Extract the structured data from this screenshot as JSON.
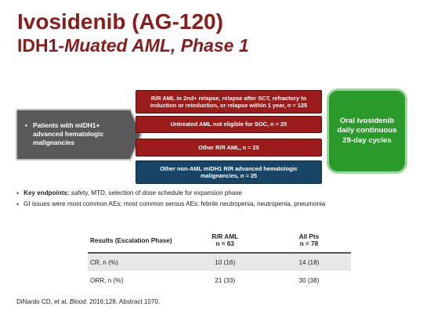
{
  "title": {
    "line1": "Ivosidenib (AG-120)",
    "line2_prefix": "IDH1-",
    "line2_italic": "Muated AML, Phase 1"
  },
  "flow": {
    "population": "Patients with mIDH1+ advanced hematologic malignancies",
    "cohorts": [
      "R/R AML in 2nd+ relapse, relapse after SCT, refractory to induction or reinduction, or relapse within 1 year, n = 125",
      "Untreated AML not eligible for SOC, n = 25",
      "Other R/R AML, n = 25",
      "Other non-AML mIDH1 R/R advanced hematologic malignancies, n = 25"
    ],
    "treatment": {
      "line1": "Oral ivosidenib",
      "line2": "daily continuous",
      "line3": "28-day cycles"
    },
    "colors": {
      "cohort_red": "#9c1b1b",
      "cohort_blue": "#184565",
      "treatment_green": "#2a9a2a",
      "population_gray": "#595959"
    }
  },
  "endpoints": [
    {
      "bold": "Key endpoints:",
      "text": " safety, MTD, selection of dose schedule for expansion phase"
    },
    {
      "bold": "",
      "text": "GI issues were most common AEs; most common serous AEs: febrile neutropenia, neutropenia, pneumonia"
    }
  ],
  "results": {
    "headers": [
      "Results (Escalation Phase)",
      "R/R AML\nn = 63",
      "All Pts\nn = 78"
    ],
    "header_col2_line1": "R/R AML",
    "header_col2_line2": "n = 63",
    "header_col3_line1": "All Pts",
    "header_col3_line2": "n = 78",
    "rows": [
      {
        "label": "CR, n (%)",
        "rr_aml": "10 (16)",
        "all": "14 (18)"
      },
      {
        "label": "ORR, n (%)",
        "rr_aml": "21 (33)",
        "all": "30 (38)"
      }
    ]
  },
  "citation": {
    "prefix": "DiNardo CD, et al. ",
    "journal": "Blood",
    "suffix": ". 2016;128. Abstract 1070."
  }
}
